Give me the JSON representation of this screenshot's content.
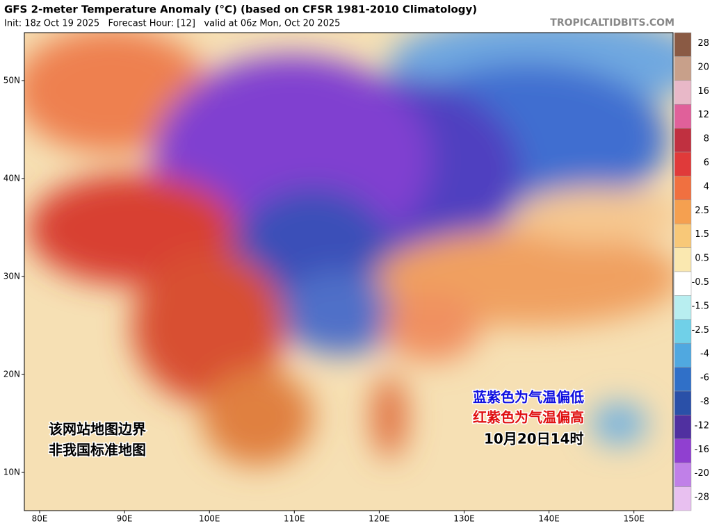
{
  "header": {
    "title": "GFS 2-meter Temperature Anomaly (°C) (based on CFSR 1981-2010 Climatology)",
    "subtitle": "Init: 18z Oct 19 2025   Forecast Hour: [12]   valid at 06z Mon, Oct 20 2025",
    "source": "TROPICALTIDBITS.COM"
  },
  "map": {
    "lat_labels": [
      "50N",
      "40N",
      "30N",
      "20N",
      "10N"
    ],
    "lon_labels": [
      "80E",
      "90E",
      "100E",
      "110E",
      "120E",
      "130E",
      "140E",
      "150E"
    ]
  },
  "colorbar": {
    "labels": [
      "28",
      "20",
      "16",
      "12",
      "8",
      "6",
      "4",
      "2.5",
      "1.5",
      "0.5",
      "-0.5",
      "-1.5",
      "-2.5",
      "-4",
      "-6",
      "-8",
      "-12",
      "-16",
      "-20",
      "-28"
    ],
    "colors": [
      "#8a5a44",
      "#c8a08a",
      "#e8b8c8",
      "#e0609a",
      "#c03040",
      "#e03a3a",
      "#f07040",
      "#f5a050",
      "#f8c878",
      "#fae8b0",
      "#ffffff",
      "#b8eef0",
      "#70d0e8",
      "#50a8e0",
      "#3070c8",
      "#2a50a8",
      "#5030a0",
      "#9040d0",
      "#c080e8",
      "#e8c0f0"
    ]
  },
  "annotations": {
    "disclaimer": [
      "该网站地图边界",
      "非我国标准地图"
    ],
    "cold_note": "蓝紫色为气温偏低",
    "warm_note": "红紫色为气温偏高",
    "time": "10月20日14时"
  }
}
